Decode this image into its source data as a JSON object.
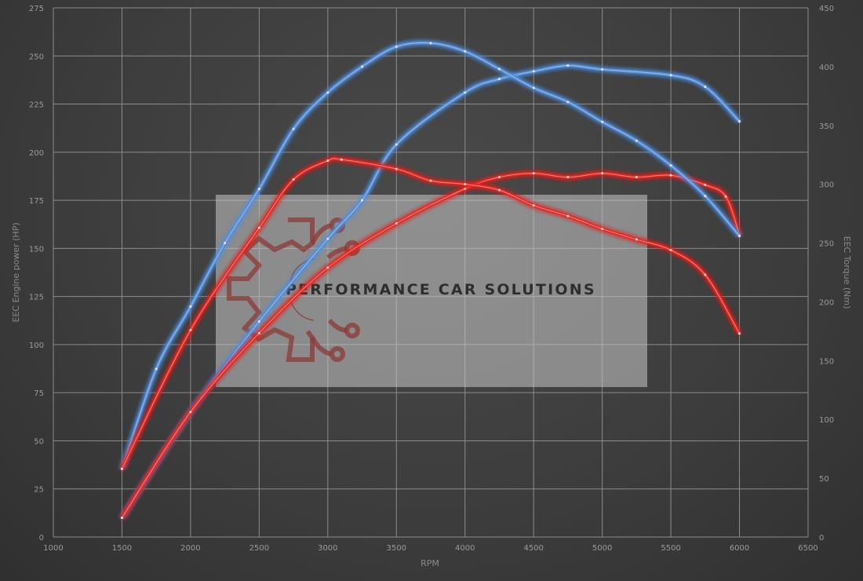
{
  "chart_data": {
    "type": "line",
    "xlabel": "RPM",
    "ylabel": "EEC Engine power (HP)",
    "y2label": "EEC Torque (Nm)",
    "xlim": [
      1000,
      6500
    ],
    "ylim": [
      0,
      275
    ],
    "y2lim": [
      0,
      450
    ],
    "xticks": [
      1000,
      1500,
      2000,
      2500,
      3000,
      3500,
      4000,
      4500,
      5000,
      5500,
      6000,
      6500
    ],
    "yticks": [
      0,
      25,
      50,
      75,
      100,
      125,
      150,
      175,
      200,
      225,
      250,
      275
    ],
    "y2ticks": [
      0,
      50,
      100,
      150,
      200,
      250,
      300,
      350,
      400,
      450
    ],
    "grid": true,
    "series": [
      {
        "axis": "left",
        "color": "#4a90e2",
        "x": [
          1500,
          2000,
          2500,
          3000,
          3250,
          3500,
          4000,
          4250,
          4500,
          4750,
          5000,
          5500,
          5750,
          6000
        ],
        "y": [
          10,
          65,
          112,
          155,
          175,
          204,
          231,
          238,
          242,
          245,
          243,
          240,
          234,
          216
        ]
      },
      {
        "axis": "left",
        "color": "#e8241e",
        "x": [
          1500,
          2000,
          2500,
          3000,
          3500,
          4000,
          4250,
          4500,
          4750,
          5000,
          5250,
          5500,
          5750,
          5900,
          6000
        ],
        "y": [
          10,
          65,
          106,
          140,
          163,
          181,
          187,
          189,
          187,
          189,
          187,
          188,
          183,
          177,
          157
        ]
      },
      {
        "axis": "right",
        "color": "#4a90e2",
        "x": [
          1500,
          1750,
          2000,
          2250,
          2500,
          2750,
          3000,
          3250,
          3500,
          3750,
          4000,
          4250,
          4500,
          4750,
          5000,
          5250,
          5500,
          5750,
          6000
        ],
        "y": [
          58,
          143,
          196,
          250,
          296,
          347,
          378,
          400,
          417,
          420,
          413,
          398,
          382,
          370,
          353,
          337,
          316,
          290,
          256
        ]
      },
      {
        "axis": "right",
        "color": "#e8241e",
        "x": [
          1500,
          2000,
          2500,
          2750,
          3000,
          3100,
          3500,
          3750,
          4000,
          4250,
          4500,
          4750,
          5000,
          5250,
          5500,
          5750,
          6000
        ],
        "y": [
          58,
          176,
          263,
          304,
          320,
          321,
          313,
          303,
          300,
          295,
          282,
          273,
          262,
          253,
          244,
          223,
          173
        ]
      }
    ]
  },
  "watermark": {
    "text": "PERFORMANCE CAR SOLUTIONS",
    "logo_color": "#8b3a36"
  }
}
